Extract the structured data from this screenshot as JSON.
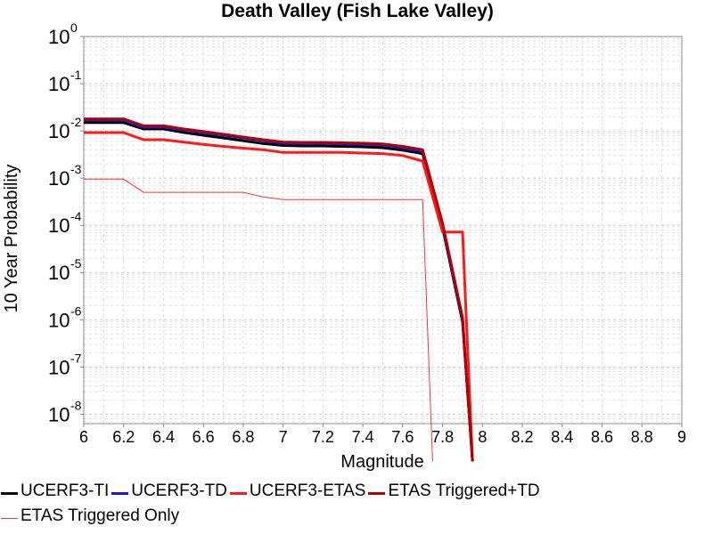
{
  "chart_data": {
    "type": "line",
    "title": "Death Valley (Fish Lake Valley)",
    "xlabel": "Magnitude",
    "ylabel": "10 Year Probability",
    "xlim": [
      6,
      9
    ],
    "ylim_exp": [
      -8.2,
      0
    ],
    "y_scale": "log",
    "grid": true,
    "legend_position": "bottom",
    "x_ticks": [
      "6",
      "6.2",
      "6.4",
      "6.6",
      "6.8",
      "7",
      "7.2",
      "7.4",
      "7.6",
      "7.8",
      "8",
      "8.2",
      "8.4",
      "8.6",
      "8.8",
      "9"
    ],
    "y_ticks": [
      {
        "base": "10",
        "exp": "0"
      },
      {
        "base": "10",
        "exp": "-1"
      },
      {
        "base": "10",
        "exp": "-2"
      },
      {
        "base": "10",
        "exp": "-3"
      },
      {
        "base": "10",
        "exp": "-4"
      },
      {
        "base": "10",
        "exp": "-5"
      },
      {
        "base": "10",
        "exp": "-6"
      },
      {
        "base": "10",
        "exp": "-7"
      },
      {
        "base": "10",
        "exp": "-8"
      }
    ],
    "series": [
      {
        "name": "UCERF3-TI",
        "color": "#000000",
        "x": [
          6.0,
          6.2,
          6.3,
          6.4,
          6.5,
          6.6,
          6.7,
          6.8,
          6.9,
          7.0,
          7.1,
          7.2,
          7.3,
          7.4,
          7.5,
          7.6,
          7.7,
          7.8,
          7.9,
          7.95
        ],
        "y": [
          0.015,
          0.015,
          0.011,
          0.011,
          0.0093,
          0.0081,
          0.0071,
          0.0062,
          0.0054,
          0.0049,
          0.0048,
          0.0048,
          0.0047,
          0.0046,
          0.0044,
          0.0039,
          0.0033,
          9e-05,
          9e-07,
          1e-09
        ]
      },
      {
        "name": "UCERF3-TD",
        "color": "#1a1adb",
        "x": [
          6.0,
          6.2,
          6.3,
          6.4,
          6.5,
          6.6,
          6.7,
          6.8,
          6.9,
          7.0,
          7.1,
          7.2,
          7.3,
          7.4,
          7.5,
          7.6,
          7.7,
          7.8,
          7.9,
          7.95
        ],
        "y": [
          0.017,
          0.017,
          0.012,
          0.012,
          0.0105,
          0.0092,
          0.0081,
          0.0071,
          0.0062,
          0.0055,
          0.0054,
          0.0054,
          0.0053,
          0.0052,
          0.005,
          0.0044,
          0.0037,
          0.0001,
          1e-06,
          1e-09
        ]
      },
      {
        "name": "UCERF3-ETAS",
        "color": "#ff1a1a",
        "x": [
          6.0,
          6.2,
          6.3,
          6.4,
          6.5,
          6.6,
          6.7,
          6.8,
          6.9,
          7.0,
          7.1,
          7.2,
          7.3,
          7.4,
          7.5,
          7.6,
          7.7,
          7.8,
          7.9,
          7.95
        ],
        "y": [
          0.0092,
          0.0092,
          0.0065,
          0.0065,
          0.0058,
          0.0052,
          0.0047,
          0.0043,
          0.004,
          0.0035,
          0.0035,
          0.0035,
          0.0035,
          0.0034,
          0.0033,
          0.003,
          0.0023,
          7.2e-05,
          7.2e-05,
          1e-09
        ]
      },
      {
        "name": "ETAS Triggered+TD",
        "color": "#b30000",
        "x": [
          6.0,
          6.2,
          6.3,
          6.4,
          6.5,
          6.6,
          6.7,
          6.8,
          6.9,
          7.0,
          7.1,
          7.2,
          7.3,
          7.4,
          7.5,
          7.6,
          7.7,
          7.8,
          7.9,
          7.95
        ],
        "y": [
          0.018,
          0.018,
          0.0128,
          0.0128,
          0.011,
          0.0097,
          0.0085,
          0.0074,
          0.0065,
          0.0058,
          0.0057,
          0.0057,
          0.0056,
          0.0055,
          0.0053,
          0.0047,
          0.004,
          0.00011,
          1.1e-06,
          1e-09
        ]
      },
      {
        "name": "ETAS Triggered Only",
        "color": "#ff3333",
        "x": [
          6.0,
          6.2,
          6.3,
          6.4,
          6.5,
          6.6,
          6.7,
          6.8,
          6.9,
          7.0,
          7.1,
          7.2,
          7.3,
          7.4,
          7.5,
          7.6,
          7.7,
          7.75
        ],
        "y": [
          0.00095,
          0.00095,
          0.0005,
          0.0005,
          0.0005,
          0.0005,
          0.0005,
          0.0005,
          0.0004,
          0.00035,
          0.00035,
          0.00035,
          0.00035,
          0.00035,
          0.00035,
          0.00035,
          0.00035,
          1e-09
        ]
      }
    ]
  }
}
